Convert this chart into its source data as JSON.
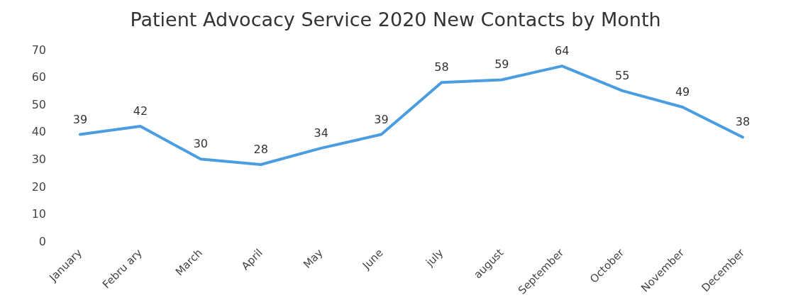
{
  "chart_data": {
    "type": "line",
    "title": "Patient Advocacy Service 2020  New Contacts by Month",
    "categories": [
      "January",
      "Febru ary",
      "March",
      "April",
      "May",
      "June",
      "july",
      "august",
      "September",
      "October",
      "November",
      "December"
    ],
    "series": [
      {
        "color": "#4a9de0",
        "values": [
          39,
          42,
          30,
          28,
          34,
          39,
          58,
          59,
          64,
          55,
          49,
          38
        ]
      }
    ],
    "ylim": [
      0,
      70
    ],
    "yticks": [
      0,
      10,
      20,
      30,
      40,
      50,
      60,
      70
    ],
    "grid": false,
    "legend": false,
    "data_labels": true,
    "marker": "none",
    "line_style": "solid"
  }
}
